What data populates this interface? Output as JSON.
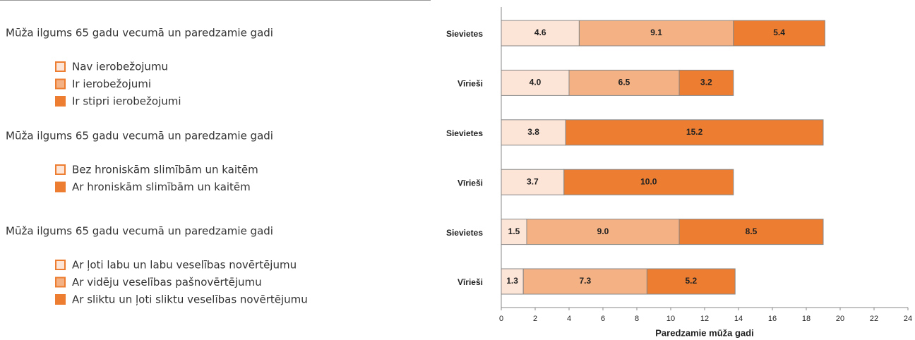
{
  "chart_data": {
    "type": "bar",
    "orientation": "horizontal",
    "stacked": true,
    "xlabel": "Paredzamie mūža gadi",
    "xlim": [
      0,
      24
    ],
    "xticks": [
      0,
      2,
      4,
      6,
      8,
      10,
      12,
      14,
      16,
      18,
      20,
      22,
      24
    ],
    "groups": [
      {
        "title": "Mūža ilgums 65 gadu vecumā un paredzamie gadi",
        "categories": [
          "Sievietes",
          "Vīrieši"
        ],
        "series": [
          {
            "name": "Nav ierobežojumu",
            "color": "#fce4d6",
            "values": [
              4.6,
              4.0
            ],
            "value_labels": [
              "4.6",
              "4.0"
            ]
          },
          {
            "name": "Ir ierobežojumi",
            "color": "#f4b183",
            "values": [
              9.1,
              6.5
            ],
            "value_labels": [
              "9.1",
              "6.5"
            ]
          },
          {
            "name": "Ir stipri ierobežojumi",
            "color": "#ed7d31",
            "values": [
              5.4,
              3.2
            ],
            "value_labels": [
              "5.4",
              "3.2"
            ]
          }
        ]
      },
      {
        "title": "Mūža ilgums 65 gadu vecumā un paredzamie gadi",
        "categories": [
          "Sievietes",
          "Vīrieši"
        ],
        "series": [
          {
            "name": "Bez hroniskām slimībām un kaitēm",
            "color": "#fce4d6",
            "values": [
              3.8,
              3.7
            ],
            "value_labels": [
              "3.8",
              "3.7"
            ]
          },
          {
            "name": "Ar hroniskām slimībām un kaitēm",
            "color": "#ed7d31",
            "values": [
              15.2,
              10.0
            ],
            "value_labels": [
              "15.2",
              "10.0"
            ]
          }
        ]
      },
      {
        "title": "Mūža ilgums 65 gadu vecumā un paredzamie gadi",
        "categories": [
          "Sievietes",
          "Vīrieši"
        ],
        "series": [
          {
            "name": "Ar ļoti labu un labu veselības novērtējumu",
            "color": "#fce4d6",
            "values": [
              1.5,
              1.3
            ],
            "value_labels": [
              "1.5",
              "1.3"
            ]
          },
          {
            "name": "Ar vidēju veselības pašnovērtējumu",
            "color": "#f4b183",
            "values": [
              9.0,
              7.3
            ],
            "value_labels": [
              "9.0",
              "7.3"
            ]
          },
          {
            "name": "Ar sliktu un ļoti sliktu veselības novērtējumu",
            "color": "#ed7d31",
            "values": [
              8.5,
              5.2
            ],
            "value_labels": [
              "8.5",
              "5.2"
            ]
          }
        ]
      }
    ]
  }
}
